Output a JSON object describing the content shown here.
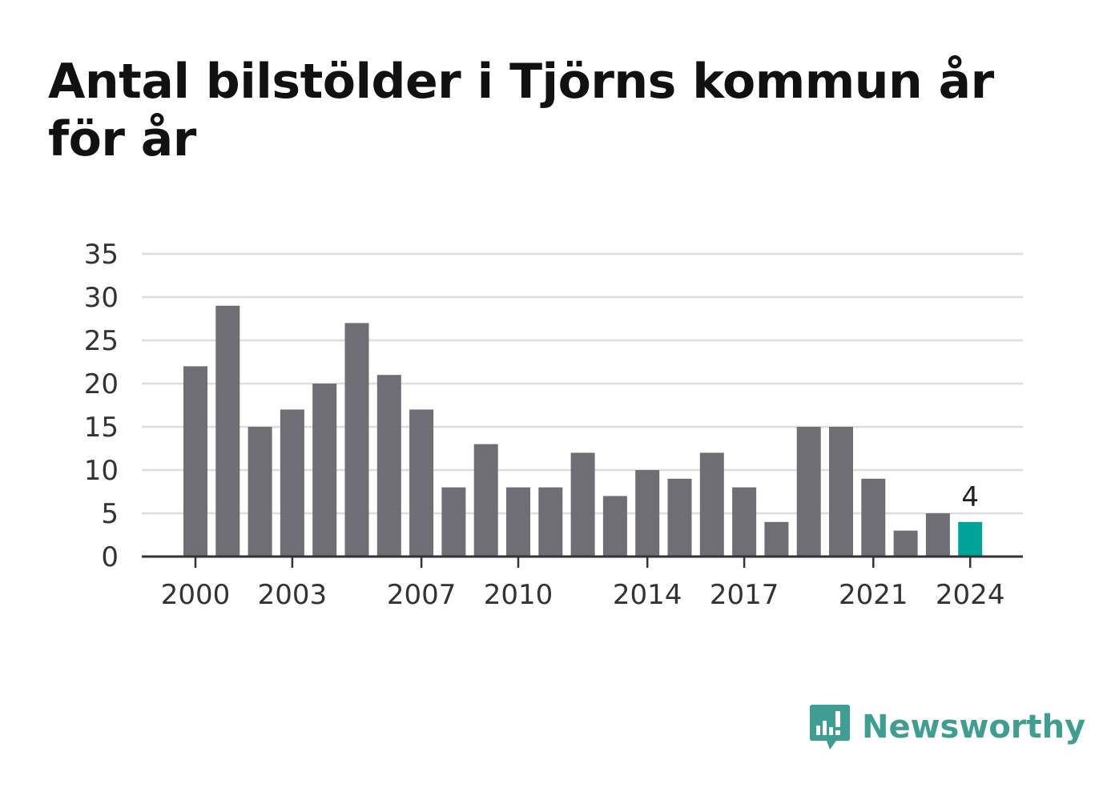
{
  "chart_data": {
    "type": "bar",
    "title": "Antal bilstölder i Tjörns kommun år för år",
    "xlabel": "",
    "ylabel": "",
    "categories": [
      "2000",
      "2001",
      "2002",
      "2003",
      "2004",
      "2005",
      "2006",
      "2007",
      "2008",
      "2009",
      "2010",
      "2011",
      "2012",
      "2013",
      "2014",
      "2015",
      "2016",
      "2017",
      "2018",
      "2019",
      "2020",
      "2021",
      "2022",
      "2023",
      "2024"
    ],
    "values": [
      22,
      29,
      15,
      17,
      20,
      27,
      21,
      17,
      8,
      13,
      8,
      8,
      12,
      7,
      10,
      9,
      12,
      8,
      4,
      15,
      15,
      9,
      3,
      5,
      4
    ],
    "x_tick_labels": [
      "2000",
      "2003",
      "2007",
      "2010",
      "2014",
      "2017",
      "2021",
      "2024"
    ],
    "y_ticks": [
      0,
      5,
      10,
      15,
      20,
      25,
      30,
      35
    ],
    "ylim": [
      0,
      35
    ],
    "grid": true,
    "highlight": {
      "category": "2024",
      "label": "4"
    },
    "colors": {
      "bar": "#6f6e75",
      "highlight": "#00a398",
      "grid": "#dddddd",
      "axis": "#333333"
    }
  },
  "logo": {
    "text": "Newsworthy",
    "icon": "newsworthy-logo-icon",
    "color": "#3f9e92"
  }
}
